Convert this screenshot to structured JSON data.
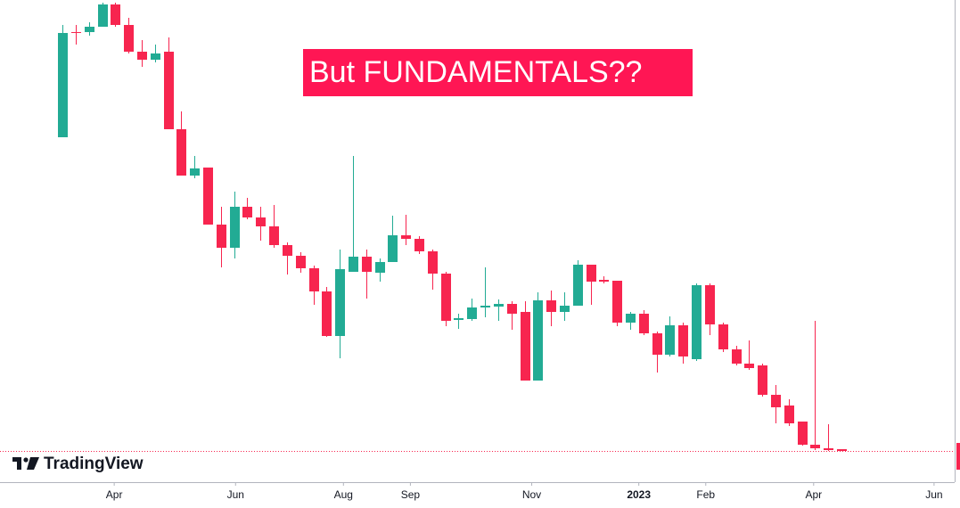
{
  "chart_data": {
    "type": "candlestick",
    "annotation": "But FUNDAMENTALS??",
    "watermark": "TradingView",
    "up_color": "#22ab94",
    "down_color": "#f7254f",
    "categories": [
      null,
      null,
      null,
      null,
      null,
      null,
      null,
      null,
      null,
      null,
      null,
      null,
      null,
      null,
      null,
      null,
      null,
      null,
      null,
      null,
      null,
      null,
      null,
      null,
      null,
      null,
      null,
      null,
      null,
      null,
      null,
      null,
      null,
      null,
      null,
      null,
      null,
      null,
      null,
      null,
      null,
      null,
      null,
      null,
      null,
      null,
      null,
      null,
      null,
      null,
      null,
      null,
      null,
      null,
      null,
      null,
      null,
      null,
      null,
      null
    ],
    "open": [
      386,
      504,
      504,
      510,
      535,
      512,
      482,
      473,
      482,
      395,
      343,
      352,
      288,
      262,
      308,
      296,
      286,
      265,
      253,
      239,
      213,
      163,
      235,
      252,
      234,
      246,
      276,
      272,
      258,
      233,
      181,
      182,
      195,
      196,
      199,
      190,
      113,
      203,
      190,
      197,
      243,
      226,
      225,
      178,
      188,
      166,
      142,
      175,
      137,
      220,
      176,
      148,
      132,
      130,
      97,
      85,
      67,
      41,
      37,
      36
    ],
    "high": [
      512,
      512,
      515,
      537,
      537,
      520,
      495,
      490,
      498,
      415,
      365,
      352,
      308,
      325,
      318,
      308,
      310,
      268,
      257,
      242,
      218,
      260,
      365,
      260,
      250,
      298,
      299,
      275,
      260,
      235,
      188,
      205,
      240,
      204,
      202,
      202,
      212,
      214,
      212,
      248,
      243,
      230,
      225,
      190,
      192,
      168,
      185,
      178,
      222,
      222,
      178,
      152,
      158,
      132,
      108,
      92,
      67,
      180,
      64,
      36
    ],
    "low": [
      386,
      490,
      500,
      510,
      510,
      480,
      465,
      470,
      395,
      343,
      340,
      288,
      240,
      250,
      294,
      270,
      262,
      232,
      234,
      198,
      162,
      138,
      235,
      205,
      224,
      246,
      265,
      255,
      215,
      174,
      171,
      180,
      184,
      180,
      170,
      113,
      113,
      174,
      180,
      197,
      198,
      222,
      174,
      170,
      164,
      122,
      140,
      132,
      135,
      164,
      145,
      130,
      125,
      95,
      65,
      62,
      40,
      35,
      34,
      34
    ],
    "close": [
      503,
      503,
      510,
      535,
      512,
      482,
      473,
      480,
      395,
      343,
      351,
      288,
      262,
      308,
      296,
      286,
      265,
      253,
      239,
      213,
      163,
      238,
      252,
      235,
      246,
      276,
      272,
      258,
      233,
      180,
      183,
      195,
      197,
      199,
      188,
      113,
      203,
      190,
      197,
      243,
      224,
      224,
      178,
      188,
      166,
      142,
      175,
      140,
      220,
      176,
      148,
      132,
      127,
      97,
      83,
      65,
      41,
      37,
      35,
      34
    ],
    "ylim": [
      0,
      540
    ],
    "xlim": [
      -4.73,
      67.57
    ],
    "xticks": [
      {
        "value": 3.92,
        "label": "Apr"
      },
      {
        "value": 13.11,
        "label": "Jun"
      },
      {
        "value": 21.28,
        "label": "Aug"
      },
      {
        "value": 26.35,
        "label": "Sep"
      },
      {
        "value": 35.54,
        "label": "Nov"
      },
      {
        "value": 43.65,
        "label": "2023"
      },
      {
        "value": 48.72,
        "label": "Feb"
      },
      {
        "value": 56.89,
        "label": "Apr"
      },
      {
        "value": 66.01,
        "label": "Jun"
      }
    ]
  }
}
